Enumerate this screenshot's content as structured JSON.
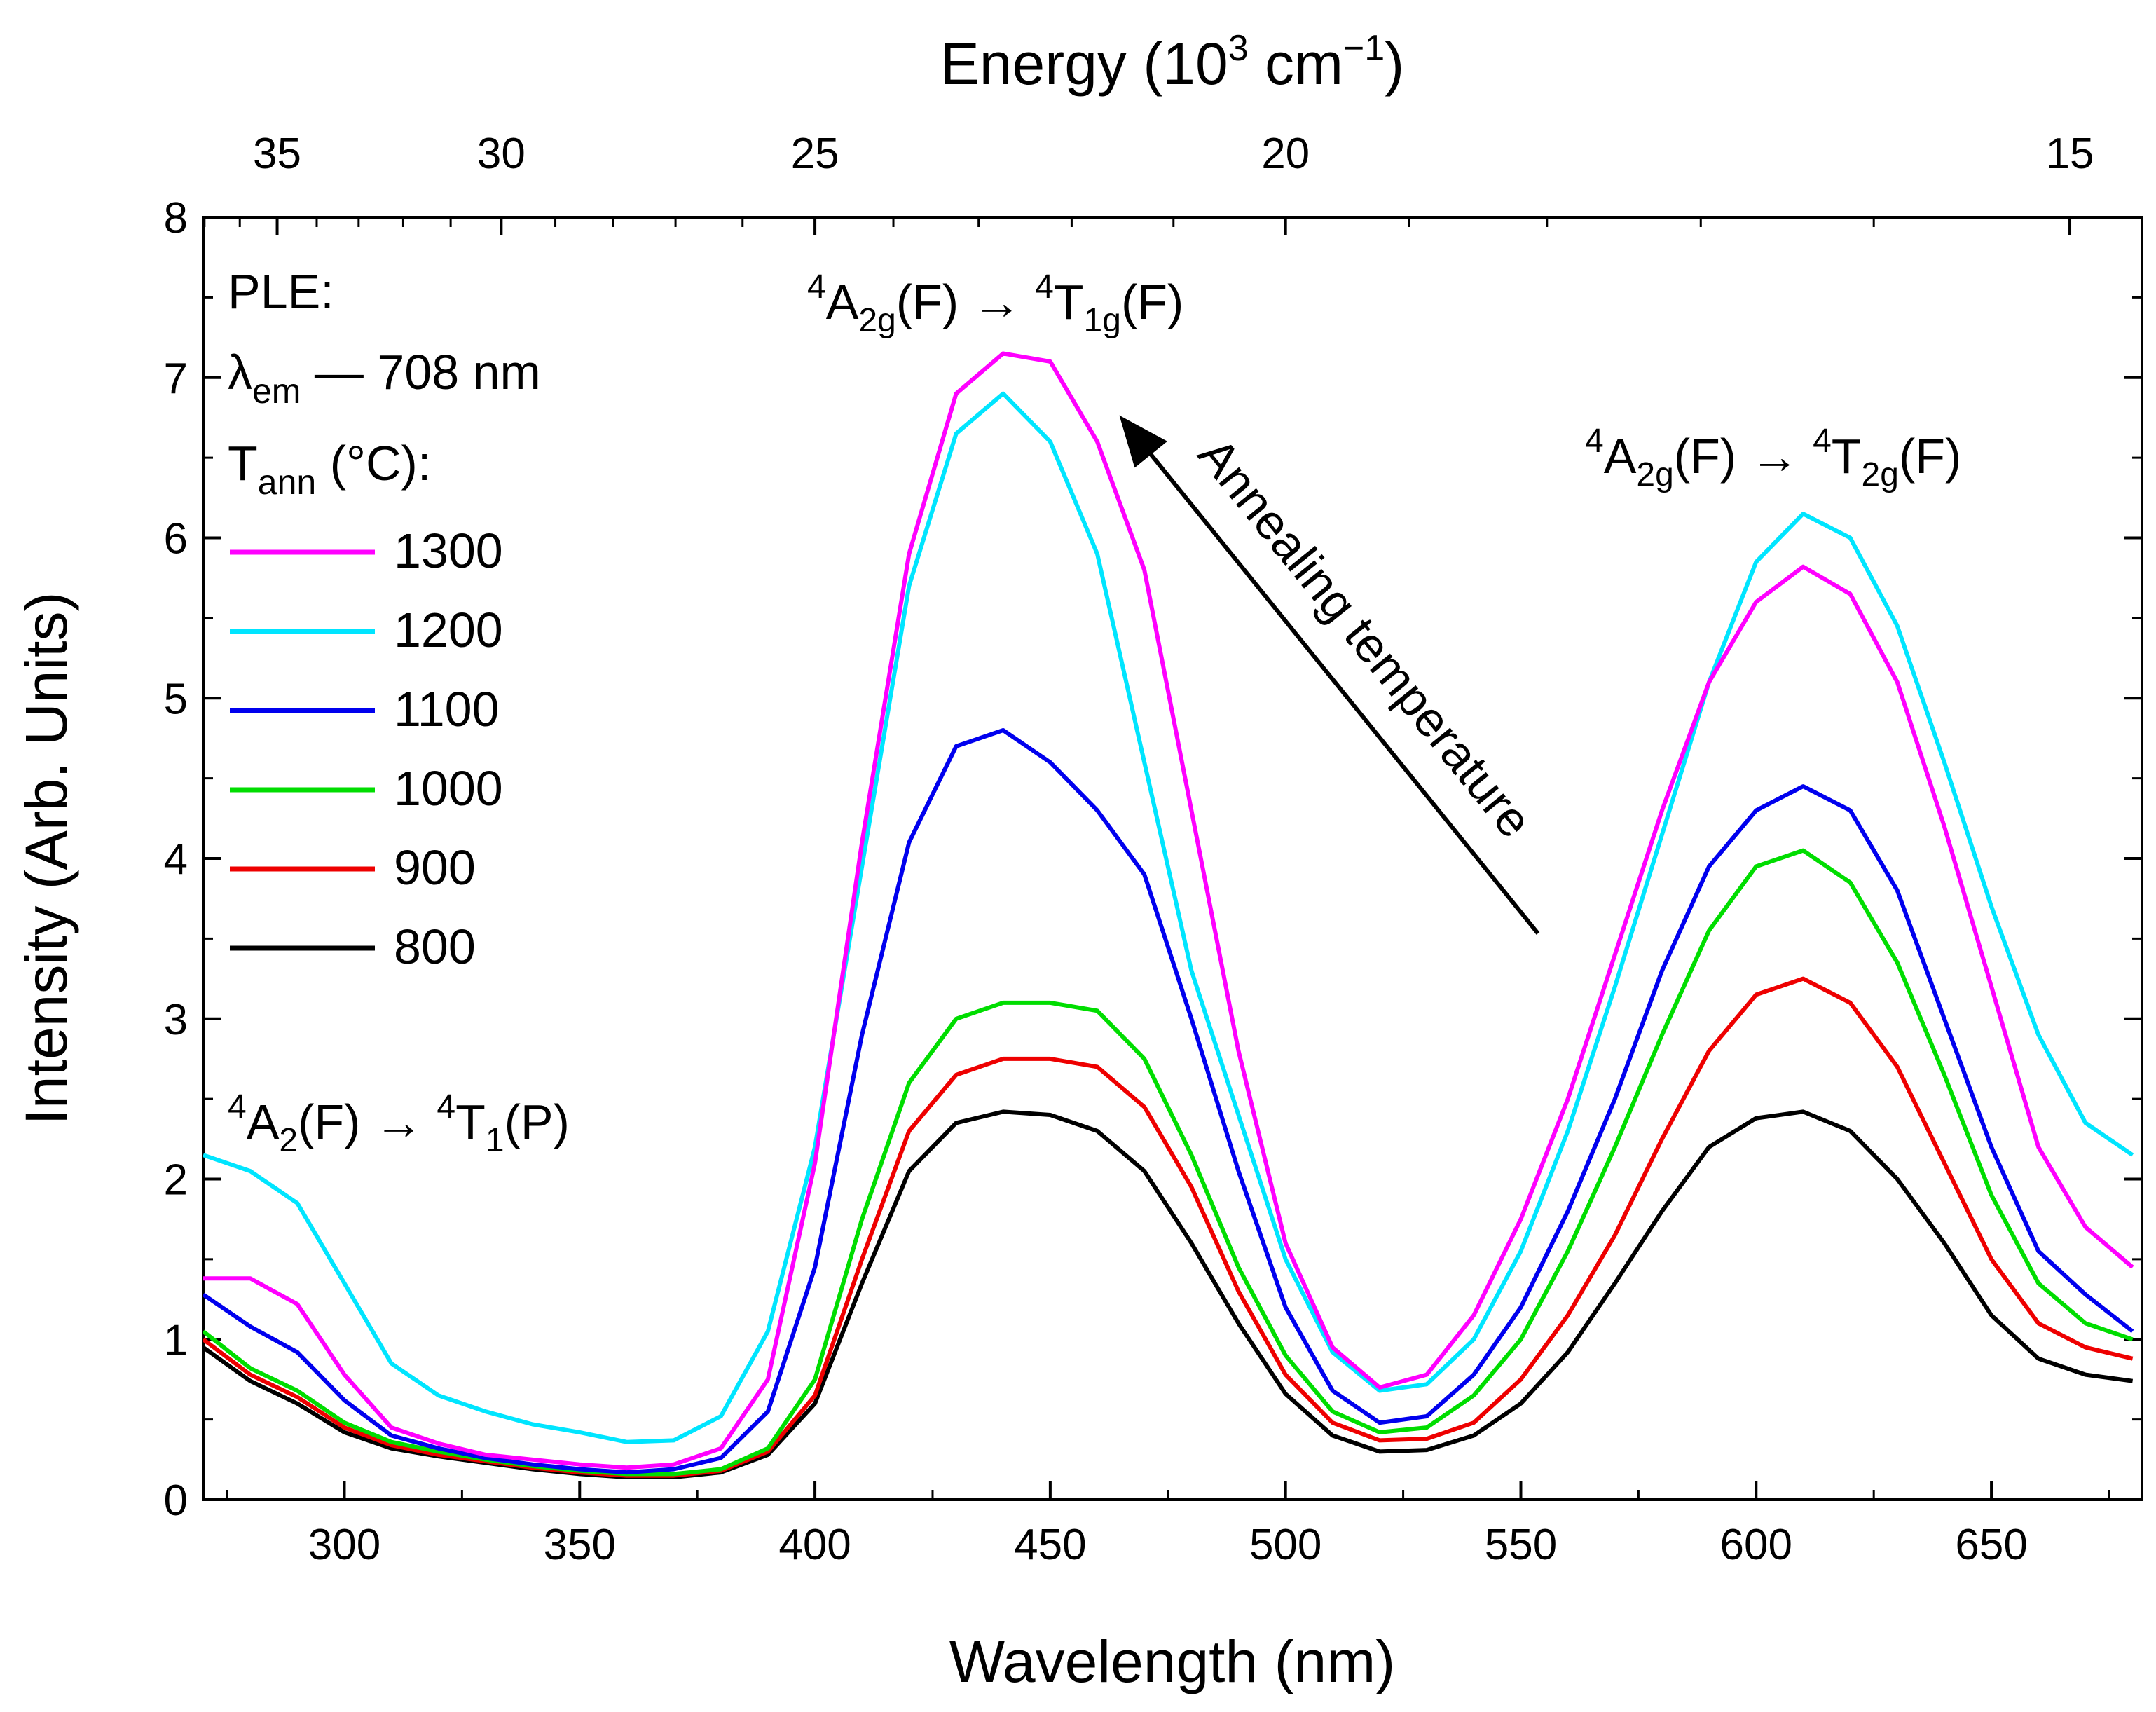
{
  "chart_data": {
    "type": "line",
    "xlabel": "Wavelength (nm)",
    "ylabel": "Intensity (Arb. Units)",
    "top_axis": {
      "label_main": "Energy (10",
      "label_exp": "3",
      "label_unit": " cm",
      "label_exp2": "−1",
      "label_close": ")",
      "ticks": [
        35,
        30,
        25,
        20,
        15
      ]
    },
    "xlim": [
      270,
      682
    ],
    "ylim": [
      0,
      8
    ],
    "xticks": [
      300,
      350,
      400,
      450,
      500,
      550,
      600,
      650
    ],
    "yticks": [
      0,
      1,
      2,
      3,
      4,
      5,
      6,
      7,
      8
    ],
    "x": [
      270,
      280,
      290,
      300,
      310,
      320,
      330,
      340,
      350,
      360,
      370,
      380,
      390,
      400,
      410,
      420,
      430,
      440,
      450,
      460,
      470,
      480,
      490,
      500,
      510,
      520,
      530,
      540,
      550,
      560,
      570,
      580,
      590,
      600,
      610,
      620,
      630,
      640,
      650,
      660,
      670,
      680
    ],
    "series": [
      {
        "name": "1300",
        "color": "#ff00ff",
        "values": [
          1.38,
          1.38,
          1.22,
          0.78,
          0.45,
          0.35,
          0.28,
          0.25,
          0.22,
          0.2,
          0.22,
          0.32,
          0.75,
          2.1,
          4.1,
          5.9,
          6.9,
          7.15,
          7.1,
          6.6,
          5.8,
          4.3,
          2.8,
          1.6,
          0.95,
          0.7,
          0.78,
          1.15,
          1.75,
          2.5,
          3.4,
          4.3,
          5.1,
          5.6,
          5.82,
          5.65,
          5.1,
          4.2,
          3.2,
          2.2,
          1.7,
          1.45
        ]
      },
      {
        "name": "1200",
        "color": "#00e5ff",
        "values": [
          2.15,
          2.05,
          1.85,
          1.35,
          0.85,
          0.65,
          0.55,
          0.47,
          0.42,
          0.36,
          0.37,
          0.52,
          1.05,
          2.2,
          3.95,
          5.7,
          6.65,
          6.9,
          6.6,
          5.9,
          4.6,
          3.3,
          2.4,
          1.5,
          0.92,
          0.68,
          0.72,
          1.0,
          1.55,
          2.3,
          3.2,
          4.15,
          5.1,
          5.85,
          6.15,
          6.0,
          5.45,
          4.6,
          3.7,
          2.9,
          2.35,
          2.15
        ]
      },
      {
        "name": "1100",
        "color": "#0000ee",
        "values": [
          1.28,
          1.08,
          0.92,
          0.62,
          0.4,
          0.32,
          0.26,
          0.22,
          0.19,
          0.17,
          0.19,
          0.26,
          0.55,
          1.45,
          2.9,
          4.1,
          4.7,
          4.8,
          4.6,
          4.3,
          3.9,
          3.0,
          2.05,
          1.2,
          0.68,
          0.48,
          0.52,
          0.78,
          1.2,
          1.8,
          2.5,
          3.3,
          3.95,
          4.3,
          4.45,
          4.3,
          3.8,
          3.0,
          2.2,
          1.55,
          1.28,
          1.05
        ]
      },
      {
        "name": "1000",
        "color": "#00dd00",
        "values": [
          1.05,
          0.82,
          0.68,
          0.48,
          0.36,
          0.3,
          0.25,
          0.21,
          0.18,
          0.16,
          0.16,
          0.19,
          0.32,
          0.75,
          1.75,
          2.6,
          3.0,
          3.1,
          3.1,
          3.05,
          2.75,
          2.15,
          1.45,
          0.9,
          0.55,
          0.42,
          0.45,
          0.65,
          1.0,
          1.55,
          2.2,
          2.9,
          3.55,
          3.95,
          4.05,
          3.85,
          3.35,
          2.65,
          1.9,
          1.35,
          1.1,
          1.0
        ]
      },
      {
        "name": "900",
        "color": "#ee0000",
        "values": [
          1.0,
          0.78,
          0.64,
          0.45,
          0.34,
          0.28,
          0.24,
          0.2,
          0.17,
          0.15,
          0.15,
          0.18,
          0.3,
          0.65,
          1.5,
          2.3,
          2.65,
          2.75,
          2.75,
          2.7,
          2.45,
          1.95,
          1.3,
          0.78,
          0.48,
          0.37,
          0.38,
          0.48,
          0.75,
          1.15,
          1.65,
          2.25,
          2.8,
          3.15,
          3.25,
          3.1,
          2.7,
          2.1,
          1.5,
          1.1,
          0.95,
          0.88
        ]
      },
      {
        "name": "800",
        "color": "#000000",
        "values": [
          0.95,
          0.74,
          0.6,
          0.42,
          0.32,
          0.27,
          0.23,
          0.19,
          0.16,
          0.14,
          0.14,
          0.17,
          0.28,
          0.6,
          1.35,
          2.05,
          2.35,
          2.42,
          2.4,
          2.3,
          2.05,
          1.6,
          1.1,
          0.66,
          0.4,
          0.3,
          0.31,
          0.4,
          0.6,
          0.92,
          1.35,
          1.8,
          2.2,
          2.38,
          2.42,
          2.3,
          2.0,
          1.6,
          1.15,
          0.88,
          0.78,
          0.74
        ]
      }
    ],
    "legend": {
      "title_line1": "PLE:",
      "title_line2_sym": "λ",
      "title_line2_sub": "em",
      "title_line2_rest": " — 708 nm",
      "title_line3_sym": "T",
      "title_line3_sub": "ann",
      "title_line3_rest": " (°C):",
      "placement": "top-left"
    },
    "annotations": {
      "peak1": {
        "sup1": "4",
        "main1": "A",
        "sub1": "2g",
        "mid": "(F) → ",
        "sup2": "4",
        "main2": "T",
        "sub2": "1g",
        "end": "(F)"
      },
      "peak2": {
        "sup1": "4",
        "main1": "A",
        "sub1": "2g",
        "mid": "(F) → ",
        "sup2": "4",
        "main2": "T",
        "sub2": "2g",
        "end": "(F)"
      },
      "peak3": {
        "sup1": "4",
        "main1": "A",
        "sub1": "2",
        "mid": "(F) → ",
        "sup2": "4",
        "main2": "T",
        "sub2": "1",
        "end": "(P)"
      },
      "arrow_label": "Annealing temperature"
    }
  }
}
